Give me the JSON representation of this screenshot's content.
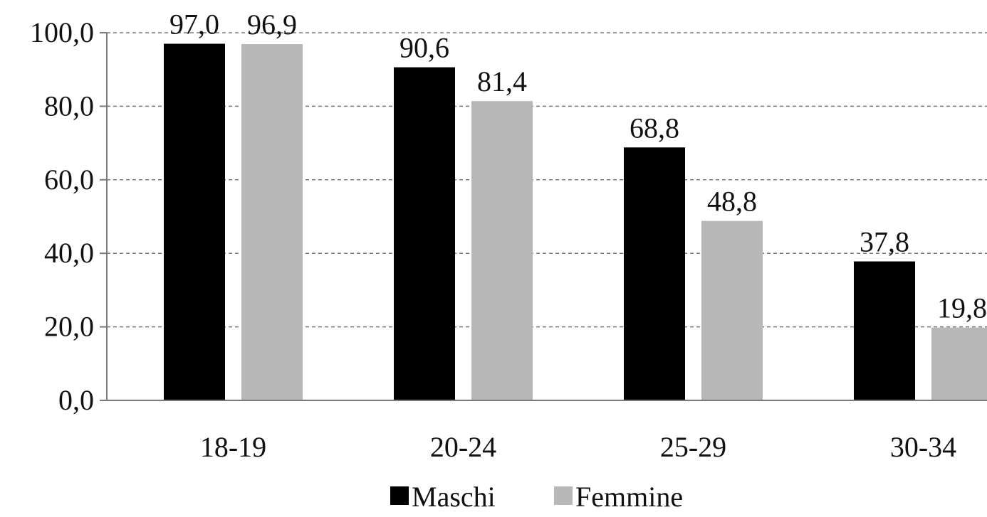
{
  "chart_data": {
    "type": "bar",
    "categories": [
      "18-19",
      "20-24",
      "25-29",
      "30-34"
    ],
    "series": [
      {
        "name": "Maschi",
        "values": [
          97.0,
          90.6,
          68.8,
          37.8
        ],
        "labels": [
          "97,0",
          "90,6",
          "68,8",
          "37,8"
        ],
        "color": "#000000"
      },
      {
        "name": "Femmine",
        "values": [
          96.9,
          81.4,
          48.8,
          19.8
        ],
        "labels": [
          "96,9",
          "81,4",
          "48,8",
          "19,8"
        ],
        "color": "#b8b8b8"
      }
    ],
    "ylim": [
      0,
      100
    ],
    "yticks": [
      0,
      20,
      40,
      60,
      80,
      100
    ],
    "ytick_labels": [
      "0,0",
      "20,0",
      "40,0",
      "60,0",
      "80,0",
      "100,0"
    ],
    "grid": "horizontal-dashed",
    "legend_position": "bottom",
    "title": "",
    "xlabel": "",
    "ylabel": ""
  }
}
